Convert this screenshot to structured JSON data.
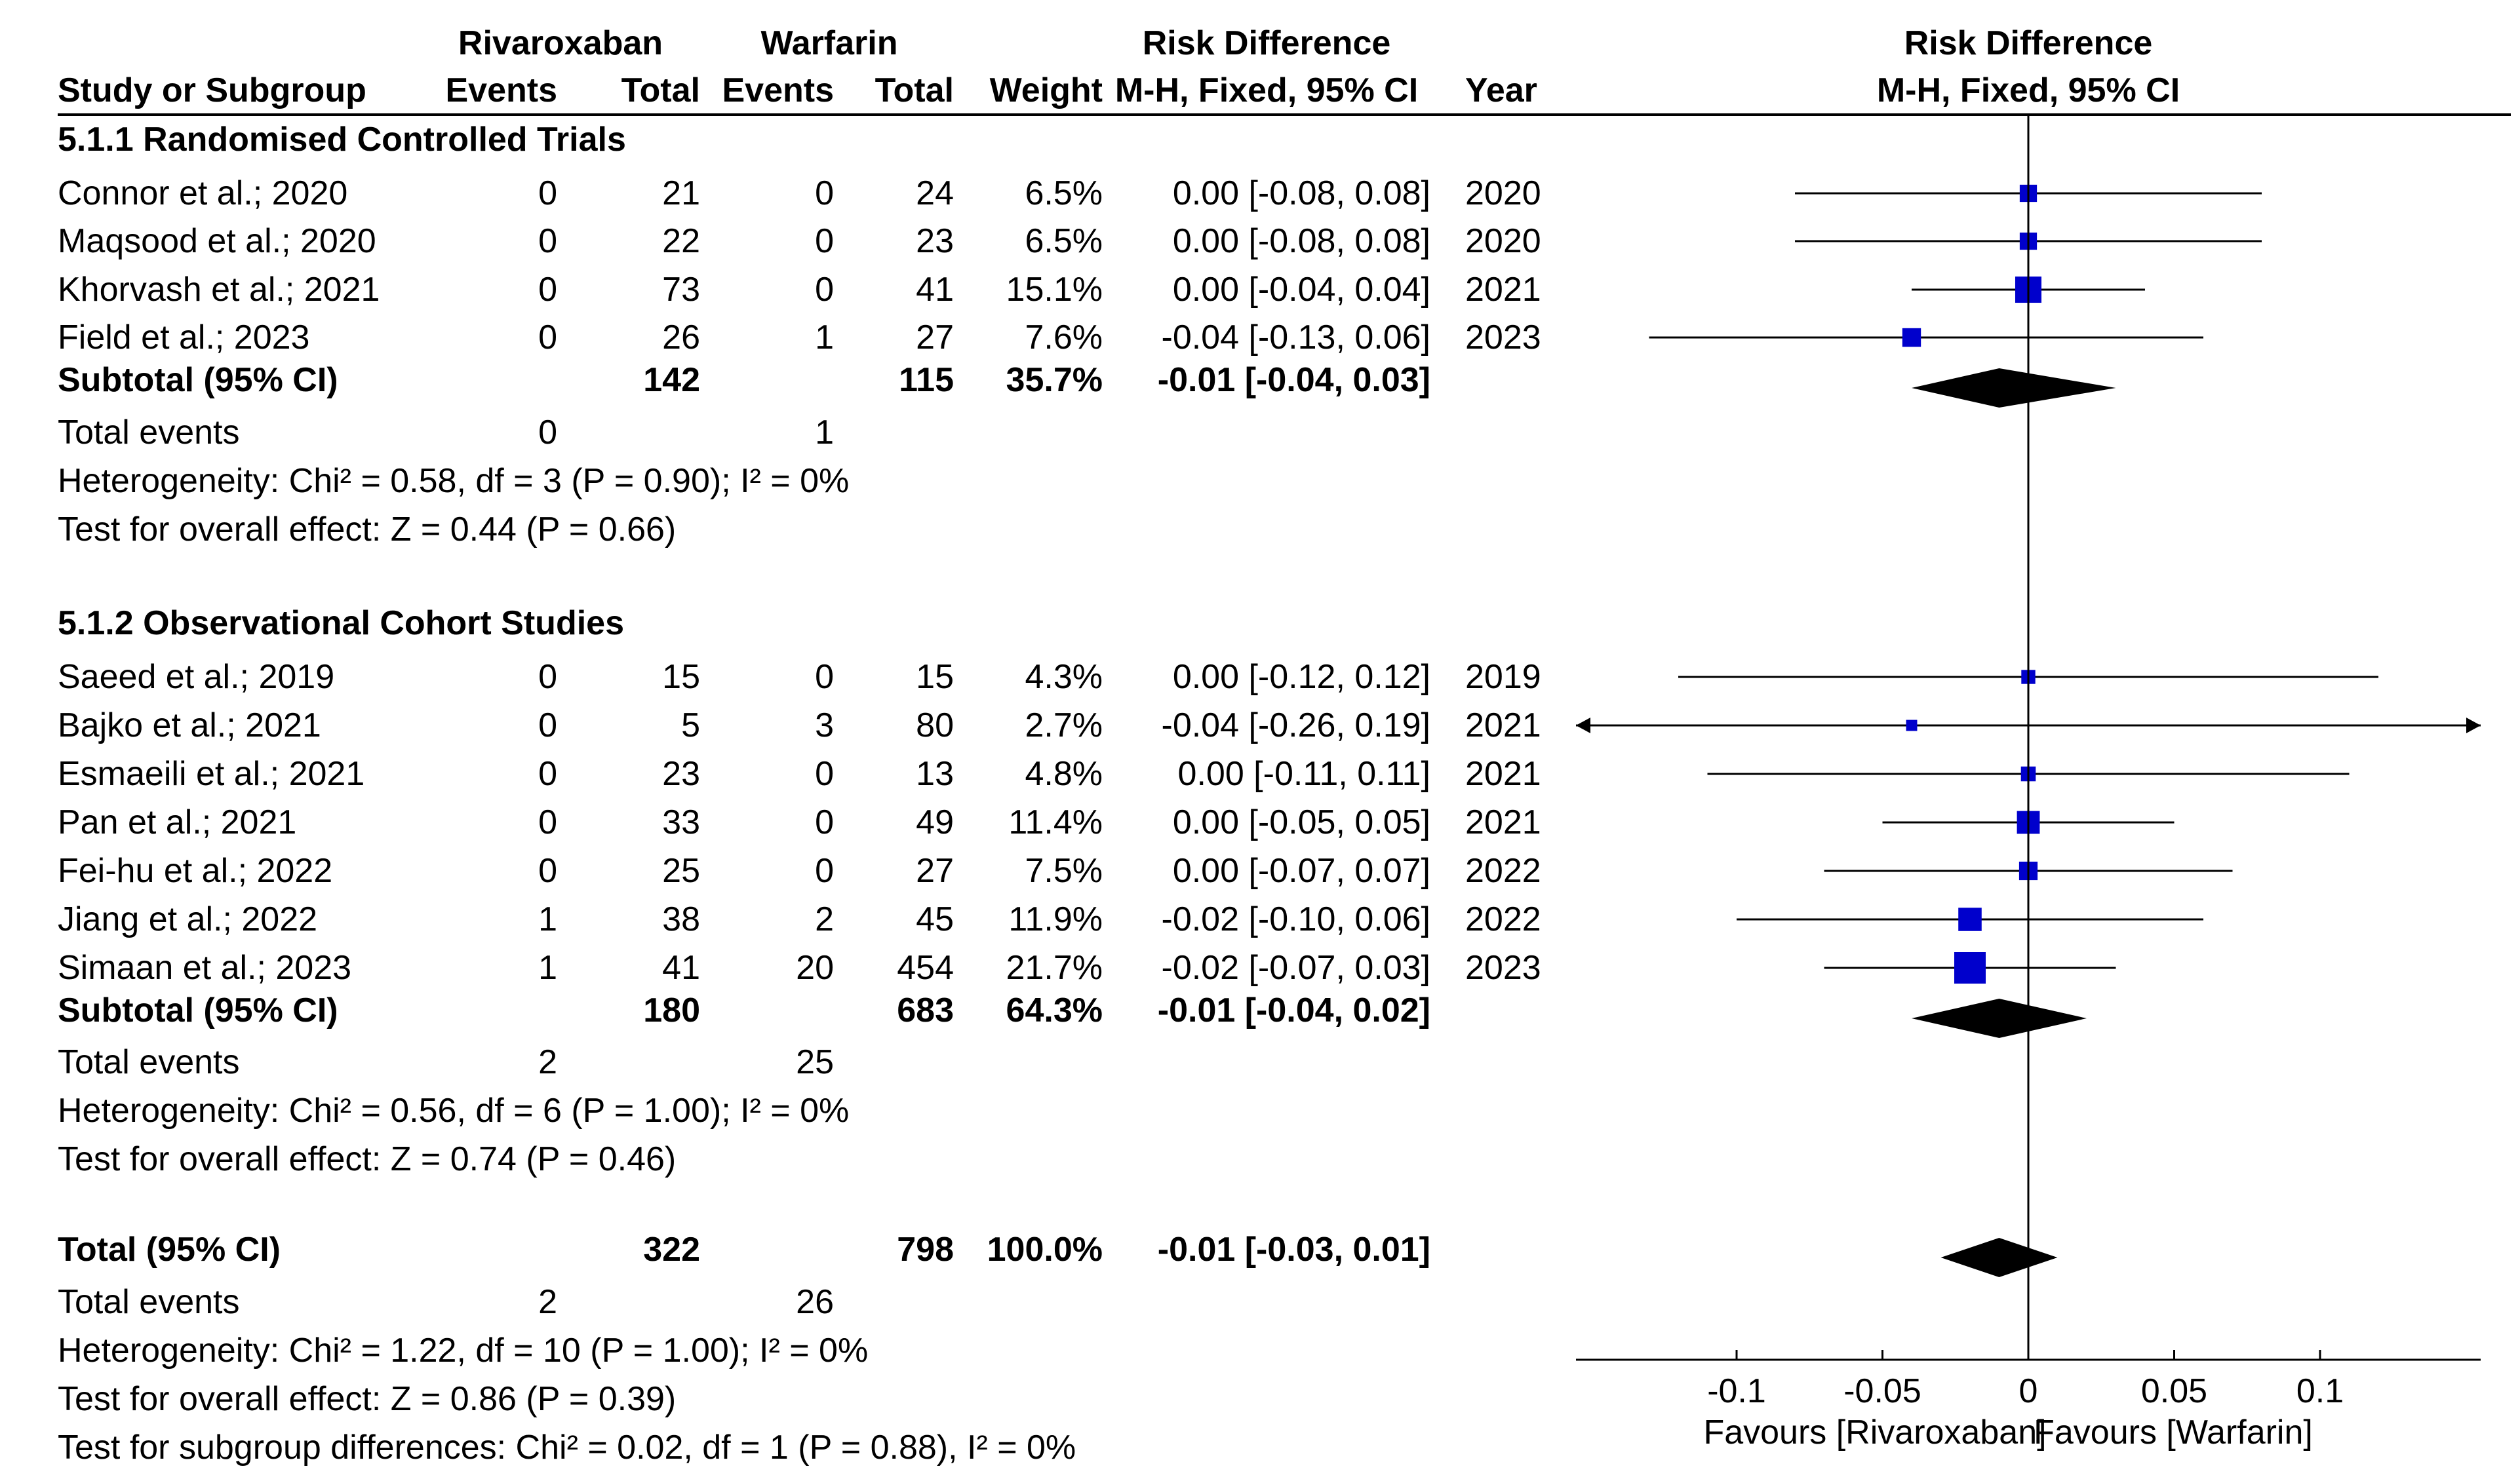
{
  "header": {
    "group1": "Rivaroxaban",
    "group2": "Warfarin",
    "effect_left": "Risk Difference",
    "effect_right": "Risk Difference",
    "study_col": "Study or Subgroup",
    "events": "Events",
    "total": "Total",
    "weight": "Weight",
    "method_left": "M-H, Fixed, 95% CI",
    "year": "Year",
    "method_right": "M-H, Fixed, 95% CI"
  },
  "chart_data": {
    "type": "forest",
    "measure": "Risk Difference (M-H, Fixed, 95% CI)",
    "xlim": [
      -0.15,
      0.15
    ],
    "xticks": [
      -0.1,
      -0.05,
      0,
      0.05,
      0.1
    ],
    "xtick_labels": [
      "-0.1",
      "-0.05",
      "0",
      "0.05",
      "0.1"
    ],
    "favours_left": "Favours [Rivaroxaban]",
    "favours_right": "Favours [Warfarin]",
    "subgroups": [
      {
        "title": "5.1.1 Randomised Controlled Trials",
        "studies": [
          {
            "name": "Connor et al.; 2020",
            "e1": "0",
            "n1": "21",
            "e2": "0",
            "n2": "24",
            "weight": "6.5%",
            "ci": "0.00 [-0.08, 0.08]",
            "year": "2020",
            "est": 0.0,
            "lo": -0.08,
            "hi": 0.08,
            "w": 6.5
          },
          {
            "name": "Maqsood et al.; 2020",
            "e1": "0",
            "n1": "22",
            "e2": "0",
            "n2": "23",
            "weight": "6.5%",
            "ci": "0.00 [-0.08, 0.08]",
            "year": "2020",
            "est": 0.0,
            "lo": -0.08,
            "hi": 0.08,
            "w": 6.5
          },
          {
            "name": "Khorvash et al.; 2021",
            "e1": "0",
            "n1": "73",
            "e2": "0",
            "n2": "41",
            "weight": "15.1%",
            "ci": "0.00 [-0.04, 0.04]",
            "year": "2021",
            "est": 0.0,
            "lo": -0.04,
            "hi": 0.04,
            "w": 15.1
          },
          {
            "name": "Field et al.; 2023",
            "e1": "0",
            "n1": "26",
            "e2": "1",
            "n2": "27",
            "weight": "7.6%",
            "ci": "-0.04 [-0.13, 0.06]",
            "year": "2023",
            "est": -0.04,
            "lo": -0.13,
            "hi": 0.06,
            "w": 7.6
          }
        ],
        "subtotal": {
          "label": "Subtotal (95% CI)",
          "n1": "142",
          "n2": "115",
          "weight": "35.7%",
          "ci": "-0.01 [-0.04, 0.03]",
          "est": -0.01,
          "lo": -0.04,
          "hi": 0.03
        },
        "total_events": {
          "label": "Total events",
          "e1": "0",
          "e2": "1"
        },
        "heterogeneity": "Heterogeneity: Chi² = 0.58, df = 3 (P = 0.90); I² = 0%",
        "overall": "Test for overall effect: Z = 0.44 (P = 0.66)"
      },
      {
        "title": "5.1.2 Observational Cohort Studies",
        "studies": [
          {
            "name": "Saeed et al.; 2019",
            "e1": "0",
            "n1": "15",
            "e2": "0",
            "n2": "15",
            "weight": "4.3%",
            "ci": "0.00 [-0.12, 0.12]",
            "year": "2019",
            "est": 0.0,
            "lo": -0.12,
            "hi": 0.12,
            "w": 4.3
          },
          {
            "name": "Bajko et al.; 2021",
            "e1": "0",
            "n1": "5",
            "e2": "3",
            "n2": "80",
            "weight": "2.7%",
            "ci": "-0.04 [-0.26, 0.19]",
            "year": "2021",
            "est": -0.04,
            "lo": -0.26,
            "hi": 0.19,
            "w": 2.7
          },
          {
            "name": "Esmaeili et al.; 2021",
            "e1": "0",
            "n1": "23",
            "e2": "0",
            "n2": "13",
            "weight": "4.8%",
            "ci": "0.00 [-0.11, 0.11]",
            "year": "2021",
            "est": 0.0,
            "lo": -0.11,
            "hi": 0.11,
            "w": 4.8
          },
          {
            "name": "Pan et al.; 2021",
            "e1": "0",
            "n1": "33",
            "e2": "0",
            "n2": "49",
            "weight": "11.4%",
            "ci": "0.00 [-0.05, 0.05]",
            "year": "2021",
            "est": 0.0,
            "lo": -0.05,
            "hi": 0.05,
            "w": 11.4
          },
          {
            "name": "Fei-hu et al.; 2022",
            "e1": "0",
            "n1": "25",
            "e2": "0",
            "n2": "27",
            "weight": "7.5%",
            "ci": "0.00 [-0.07, 0.07]",
            "year": "2022",
            "est": 0.0,
            "lo": -0.07,
            "hi": 0.07,
            "w": 7.5
          },
          {
            "name": "Jiang et al.; 2022",
            "e1": "1",
            "n1": "38",
            "e2": "2",
            "n2": "45",
            "weight": "11.9%",
            "ci": "-0.02 [-0.10, 0.06]",
            "year": "2022",
            "est": -0.02,
            "lo": -0.1,
            "hi": 0.06,
            "w": 11.9
          },
          {
            "name": "Simaan et al.; 2023",
            "e1": "1",
            "n1": "41",
            "e2": "20",
            "n2": "454",
            "weight": "21.7%",
            "ci": "-0.02 [-0.07, 0.03]",
            "year": "2023",
            "est": -0.02,
            "lo": -0.07,
            "hi": 0.03,
            "w": 21.7
          }
        ],
        "subtotal": {
          "label": "Subtotal (95% CI)",
          "n1": "180",
          "n2": "683",
          "weight": "64.3%",
          "ci": "-0.01 [-0.04, 0.02]",
          "est": -0.01,
          "lo": -0.04,
          "hi": 0.02
        },
        "total_events": {
          "label": "Total events",
          "e1": "2",
          "e2": "25"
        },
        "heterogeneity": "Heterogeneity: Chi² = 0.56, df = 6 (P = 1.00); I² = 0%",
        "overall": "Test for overall effect: Z = 0.74 (P = 0.46)"
      }
    ],
    "total": {
      "label": "Total (95% CI)",
      "n1": "322",
      "n2": "798",
      "weight": "100.0%",
      "ci": "-0.01 [-0.03, 0.01]",
      "est": -0.01,
      "lo": -0.03,
      "hi": 0.01
    },
    "total_events": {
      "label": "Total events",
      "e1": "2",
      "e2": "26"
    },
    "heterogeneity": "Heterogeneity: Chi² = 1.22, df = 10 (P = 1.00); I² = 0%",
    "overall": "Test for overall effect: Z = 0.86 (P = 0.39)",
    "subgroup_diff": "Test for subgroup differences: Chi² = 0.02, df = 1 (P = 0.88), I² = 0%"
  },
  "colors": {
    "square": "#0000cc",
    "line": "#000000",
    "diamond": "#000000"
  }
}
